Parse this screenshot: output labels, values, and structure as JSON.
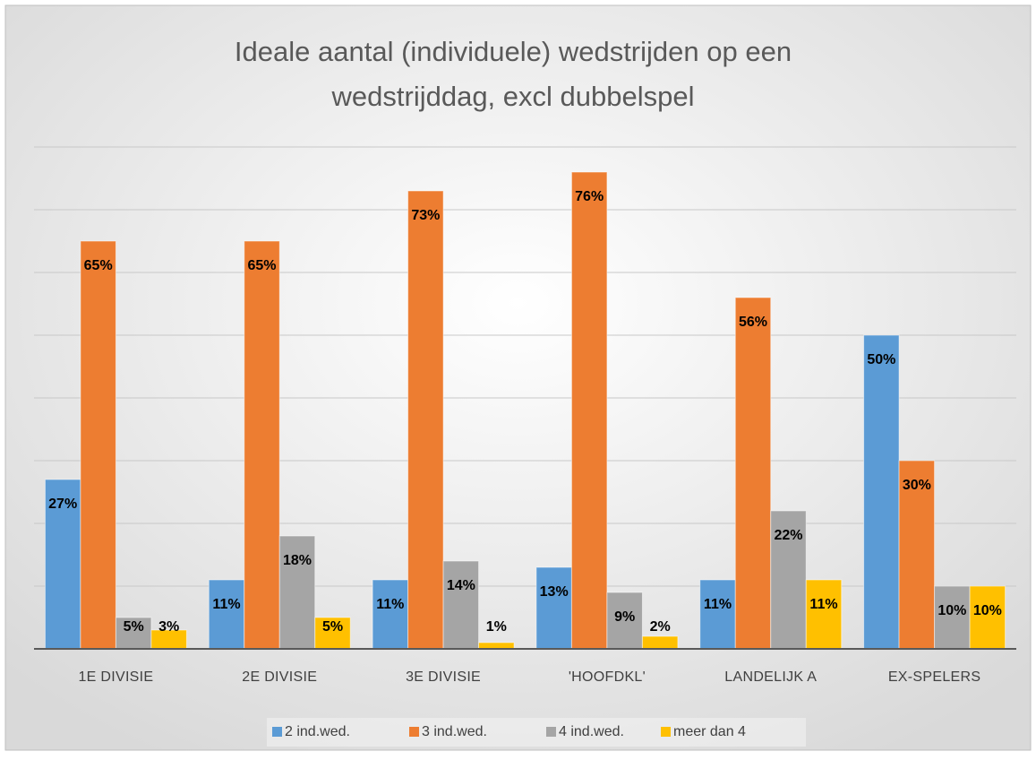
{
  "chart_data": {
    "type": "bar",
    "title": [
      "Ideale aantal (individuele) wedstrijden op een",
      "wedstrijddag, excl dubbelspel"
    ],
    "categories": [
      "1E DIVISIE",
      "2E DIVISIE",
      "3E DIVISIE",
      "'HOOFDKL'",
      "LANDELIJK A",
      "EX-SPELERS"
    ],
    "series": [
      {
        "name": "2 ind.wed.",
        "color": "#5b9bd5",
        "values": [
          27,
          11,
          11,
          13,
          11,
          50
        ],
        "value_labels": [
          "27%",
          "11%",
          "11%",
          "13%",
          "11%",
          "50%"
        ]
      },
      {
        "name": "3 ind.wed.",
        "color": "#ed7d31",
        "values": [
          65,
          65,
          73,
          76,
          56,
          30
        ],
        "value_labels": [
          "65%",
          "65%",
          "73%",
          "76%",
          "56%",
          "30%"
        ]
      },
      {
        "name": "4 ind.wed.",
        "color": "#a5a5a5",
        "values": [
          5,
          18,
          14,
          9,
          22,
          10
        ],
        "value_labels": [
          "5%",
          "18%",
          "14%",
          "9%",
          "22%",
          "10%"
        ]
      },
      {
        "name": "meer dan 4",
        "color": "#ffc000",
        "values": [
          3,
          5,
          1,
          2,
          11,
          10
        ],
        "value_labels": [
          "3%",
          "5%",
          "1%",
          "2%",
          "11%",
          "10%"
        ]
      }
    ],
    "ylim": [
      0,
      80
    ],
    "yticks": [
      10,
      20,
      30,
      40,
      50,
      60,
      70,
      80
    ],
    "grid": true,
    "legend": "bottom"
  }
}
